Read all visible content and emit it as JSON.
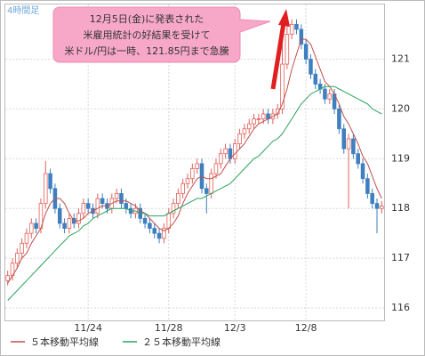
{
  "chart_data": {
    "type": "candlestick",
    "corner_label": "4時間足",
    "annotation": [
      "12月5日(金)に発表された",
      "米雇用統計の好結果を受けて",
      "米ドル/円は一時、121.85円まで急騰"
    ],
    "categories": [
      null,
      null,
      null,
      null,
      null,
      null,
      null,
      null,
      null,
      null,
      null,
      null,
      null,
      null,
      null,
      null,
      null,
      "11/24",
      null,
      null,
      null,
      null,
      null,
      null,
      null,
      null,
      null,
      null,
      null,
      null,
      null,
      null,
      null,
      null,
      "11/28",
      null,
      null,
      null,
      null,
      null,
      null,
      null,
      null,
      null,
      null,
      null,
      null,
      null,
      "12/3",
      null,
      null,
      null,
      null,
      null,
      null,
      null,
      null,
      null,
      null,
      null,
      null,
      null,
      null,
      "12/8",
      null,
      null,
      null,
      null,
      null,
      null,
      null,
      null,
      null,
      null,
      null,
      null,
      null,
      null,
      null,
      null
    ],
    "open": [
      116.55,
      116.65,
      116.9,
      117.1,
      117.3,
      117.5,
      117.7,
      117.6,
      118.1,
      118.7,
      118.4,
      118.0,
      117.7,
      117.6,
      117.8,
      117.7,
      117.9,
      118.1,
      118.0,
      117.9,
      118.2,
      118.1,
      118.0,
      118.2,
      118.3,
      118.1,
      118.0,
      117.9,
      118.0,
      117.8,
      117.7,
      117.6,
      117.5,
      117.4,
      117.6,
      117.9,
      118.1,
      118.3,
      118.5,
      118.6,
      118.8,
      118.9,
      118.4,
      118.3,
      118.7,
      118.9,
      119.1,
      119.2,
      119.0,
      119.3,
      119.5,
      119.6,
      119.7,
      119.8,
      119.8,
      119.9,
      119.8,
      119.9,
      120.0,
      120.9,
      121.5,
      121.7,
      121.6,
      121.3,
      121.0,
      120.7,
      120.5,
      120.4,
      120.2,
      120.3,
      120.0,
      119.6,
      119.2,
      119.4,
      119.1,
      118.9,
      118.6,
      118.3,
      118.1,
      118.0
    ],
    "high": [
      116.75,
      117.0,
      117.2,
      117.4,
      117.6,
      117.8,
      117.8,
      118.2,
      118.95,
      118.8,
      118.5,
      118.1,
      117.8,
      117.9,
      117.9,
      118.0,
      118.2,
      118.2,
      118.1,
      118.3,
      118.3,
      118.2,
      118.3,
      118.4,
      118.4,
      118.2,
      118.1,
      118.1,
      118.1,
      117.9,
      117.8,
      117.7,
      117.6,
      117.7,
      118.0,
      118.2,
      118.4,
      118.6,
      118.7,
      118.9,
      119.0,
      119.0,
      118.5,
      118.8,
      119.0,
      119.2,
      119.3,
      119.3,
      119.4,
      119.6,
      119.7,
      119.8,
      119.9,
      119.9,
      120.0,
      120.0,
      120.0,
      120.1,
      121.85,
      121.7,
      121.8,
      121.8,
      121.7,
      121.4,
      121.1,
      120.8,
      120.6,
      120.5,
      120.4,
      120.4,
      120.1,
      119.7,
      119.5,
      119.5,
      119.2,
      119.0,
      118.7,
      118.4,
      118.2,
      118.15
    ],
    "low": [
      116.45,
      116.55,
      116.8,
      117.0,
      117.2,
      117.4,
      117.5,
      117.5,
      118.0,
      118.3,
      117.9,
      117.6,
      117.5,
      117.5,
      117.6,
      117.6,
      117.8,
      117.9,
      117.8,
      117.8,
      118.0,
      117.9,
      117.9,
      118.1,
      118.0,
      117.9,
      117.8,
      117.8,
      117.7,
      117.6,
      117.5,
      117.4,
      117.3,
      117.3,
      117.5,
      117.8,
      118.0,
      118.2,
      118.4,
      118.5,
      118.7,
      118.3,
      117.9,
      118.2,
      118.6,
      118.8,
      119.0,
      118.9,
      118.9,
      119.2,
      119.4,
      119.5,
      119.6,
      119.7,
      119.7,
      119.7,
      119.7,
      119.8,
      119.9,
      120.8,
      121.4,
      121.5,
      121.2,
      120.9,
      120.6,
      120.4,
      120.3,
      120.1,
      120.1,
      119.9,
      119.5,
      119.1,
      118.0,
      119.0,
      118.8,
      118.5,
      118.2,
      118.0,
      117.5,
      117.9
    ],
    "close": [
      116.65,
      116.9,
      117.1,
      117.3,
      117.5,
      117.7,
      117.6,
      118.1,
      118.7,
      118.4,
      118.0,
      117.7,
      117.6,
      117.8,
      117.7,
      117.9,
      118.1,
      118.0,
      117.9,
      118.2,
      118.1,
      118.0,
      118.2,
      118.3,
      118.1,
      118.0,
      117.9,
      118.0,
      117.8,
      117.7,
      117.6,
      117.5,
      117.4,
      117.6,
      117.9,
      118.1,
      118.3,
      118.5,
      118.6,
      118.8,
      118.9,
      118.4,
      118.3,
      118.7,
      118.9,
      119.1,
      119.2,
      119.0,
      119.3,
      119.5,
      119.6,
      119.7,
      119.8,
      119.8,
      119.9,
      119.8,
      119.9,
      120.0,
      120.9,
      121.5,
      121.7,
      121.6,
      121.3,
      121.0,
      120.7,
      120.5,
      120.4,
      120.2,
      120.3,
      120.0,
      119.6,
      119.2,
      119.4,
      119.1,
      118.9,
      118.6,
      118.3,
      118.1,
      118.0,
      118.05
    ],
    "up_color": "#e0605a",
    "down_color": "#3f7fbf",
    "series": [
      {
        "name": "５本移動平均線",
        "color": "#c0504d",
        "values": [
          116.5,
          116.65,
          116.8,
          117.0,
          117.1,
          117.3,
          117.45,
          117.6,
          117.9,
          118.1,
          118.2,
          118.2,
          118.1,
          117.9,
          117.75,
          117.75,
          117.8,
          117.9,
          117.95,
          118.0,
          118.05,
          118.05,
          118.1,
          118.15,
          118.15,
          118.15,
          118.1,
          118.05,
          117.95,
          117.9,
          117.8,
          117.7,
          117.6,
          117.55,
          117.6,
          117.7,
          117.85,
          118.1,
          118.3,
          118.45,
          118.6,
          118.65,
          118.6,
          118.6,
          118.65,
          118.7,
          118.85,
          119.0,
          119.1,
          119.2,
          119.3,
          119.45,
          119.6,
          119.7,
          119.75,
          119.8,
          119.85,
          119.9,
          120.1,
          120.4,
          120.8,
          121.1,
          121.4,
          121.4,
          121.3,
          121.05,
          120.8,
          120.55,
          120.45,
          120.3,
          120.1,
          119.85,
          119.7,
          119.5,
          119.3,
          119.05,
          118.9,
          118.65,
          118.4,
          118.2
        ]
      },
      {
        "name": "２５本移動平均線",
        "color": "#2ca25f",
        "values": [
          116.15,
          116.25,
          116.35,
          116.45,
          116.55,
          116.65,
          116.75,
          116.85,
          116.95,
          117.05,
          117.15,
          117.25,
          117.35,
          117.45,
          117.5,
          117.55,
          117.65,
          117.7,
          117.8,
          117.85,
          117.9,
          117.95,
          118.0,
          118.0,
          118.0,
          118.0,
          117.95,
          117.95,
          117.9,
          117.9,
          117.85,
          117.85,
          117.85,
          117.85,
          117.9,
          117.95,
          118.0,
          118.05,
          118.1,
          118.15,
          118.2,
          118.2,
          118.25,
          118.3,
          118.35,
          118.4,
          118.45,
          118.5,
          118.6,
          118.7,
          118.8,
          118.9,
          119.0,
          119.05,
          119.15,
          119.25,
          119.35,
          119.4,
          119.5,
          119.65,
          119.8,
          119.95,
          120.1,
          120.2,
          120.3,
          120.35,
          120.4,
          120.45,
          120.45,
          120.45,
          120.4,
          120.35,
          120.3,
          120.25,
          120.2,
          120.15,
          120.1,
          120.0,
          119.95,
          119.9
        ]
      }
    ],
    "ylim": [
      115.75,
      122.1
    ],
    "yticks": [
      116,
      117,
      118,
      119,
      120,
      121
    ],
    "grid": true
  }
}
